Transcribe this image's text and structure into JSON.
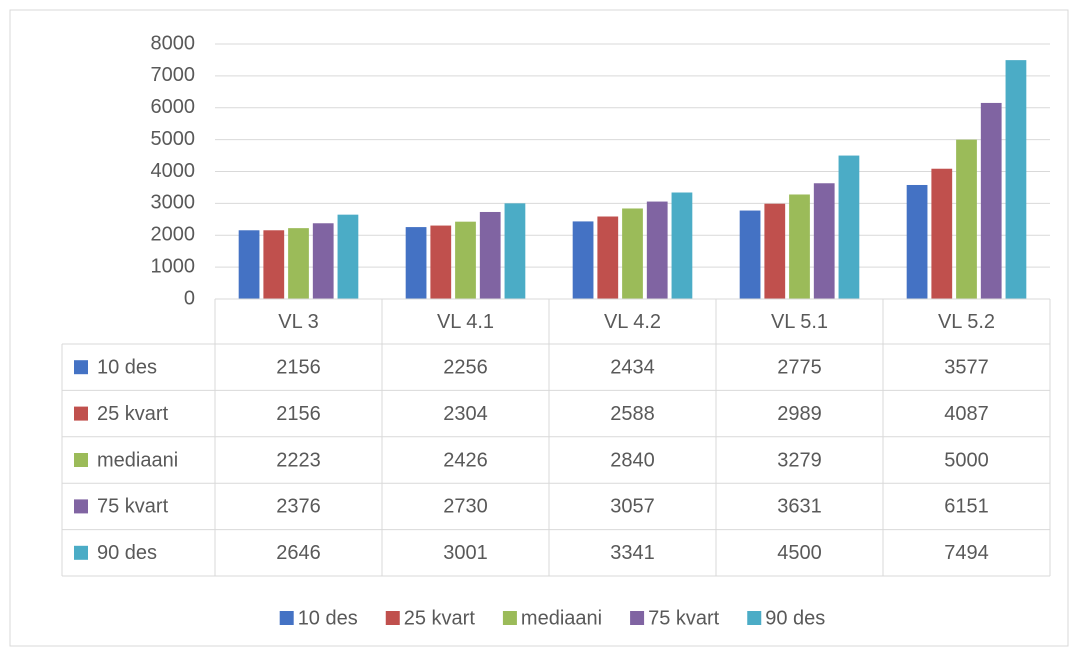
{
  "chart_data": {
    "type": "bar",
    "categories": [
      "VL 3",
      "VL 4.1",
      "VL 4.2",
      "VL 5.1",
      "VL 5.2"
    ],
    "series": [
      {
        "name": "10 des",
        "color": "#4472c4",
        "values": [
          2156,
          2256,
          2434,
          2775,
          3577
        ]
      },
      {
        "name": "25 kvart",
        "color": "#c0504d",
        "values": [
          2156,
          2304,
          2588,
          2989,
          4087
        ]
      },
      {
        "name": "mediaani",
        "color": "#9bbb59",
        "values": [
          2223,
          2426,
          2840,
          3279,
          5000
        ]
      },
      {
        "name": "75 kvart",
        "color": "#8064a2",
        "values": [
          2376,
          2730,
          3057,
          3631,
          6151
        ]
      },
      {
        "name": "90 des",
        "color": "#4bacc6",
        "values": [
          2646,
          3001,
          3341,
          4500,
          7494
        ]
      }
    ],
    "ylim": [
      0,
      8000
    ],
    "yticks": [
      0,
      1000,
      2000,
      3000,
      4000,
      5000,
      6000,
      7000,
      8000
    ],
    "grid": true,
    "legend": "bottom",
    "data_table": true
  }
}
